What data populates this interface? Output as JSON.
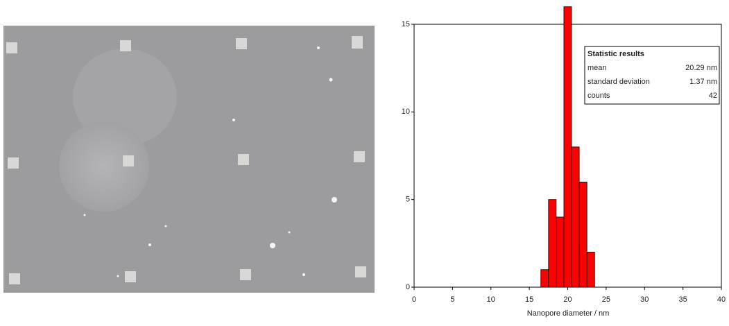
{
  "chart_data": {
    "type": "histogram",
    "xlabel": "Nanopore diameter / nm",
    "bins": [
      16.5,
      17.5,
      18.5,
      19.5,
      20.5,
      21.5,
      22.5,
      23.5
    ],
    "values": [
      1,
      5,
      4,
      16,
      8,
      6,
      2
    ],
    "color": "#ff0000",
    "xlim": [
      0,
      40
    ],
    "xticks": [
      0,
      5,
      10,
      15,
      20,
      25,
      30,
      35,
      40
    ],
    "ylim": [
      0,
      15
    ],
    "yticks": [
      0,
      5,
      10,
      15
    ],
    "stats_table": {
      "title": "Statistic results",
      "rows": [
        [
          "mean",
          "20.29 nm"
        ],
        [
          "standard deviation",
          "1.37 nm"
        ],
        [
          "counts",
          "42"
        ]
      ]
    }
  }
}
